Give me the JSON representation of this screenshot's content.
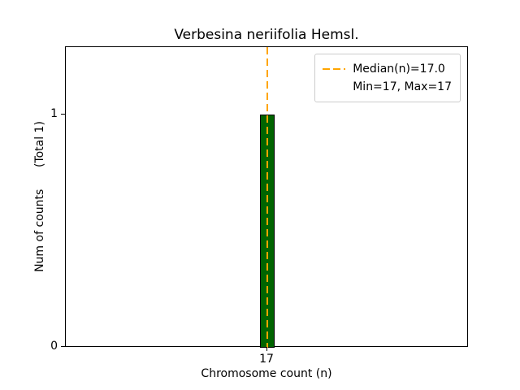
{
  "figure": {
    "title": "Verbesina neriifolia Hemsl."
  },
  "axes": {
    "xlabel": "Chromosome count (n)",
    "ylabel": "Num of counts      (Total 1)"
  },
  "chart_data": {
    "type": "bar",
    "title": "Verbesina neriifolia Hemsl.",
    "xlabel": "Chromosome count (n)",
    "ylabel": "Num of counts (Total 1)",
    "categories": [
      "17"
    ],
    "x": [
      17
    ],
    "values": [
      1
    ],
    "xticks": [
      17
    ],
    "yticks": [
      0,
      1
    ],
    "xlim": [
      16.5,
      17.5
    ],
    "ylim": [
      0,
      1.29
    ],
    "grid": false,
    "bar_color": "#006400",
    "bar_edge_color": "#000000",
    "median_line": {
      "x": 17,
      "value": 17.0,
      "color": "#FFA500",
      "style": "dashed",
      "label": "Median(n)=17.0"
    },
    "stats": {
      "median": 17.0,
      "min": 17,
      "max": 17,
      "total_counts": 1
    },
    "legend": {
      "position": "upper right",
      "entries": [
        "Median(n)=17.0",
        "Min=17, Max=17"
      ]
    }
  }
}
